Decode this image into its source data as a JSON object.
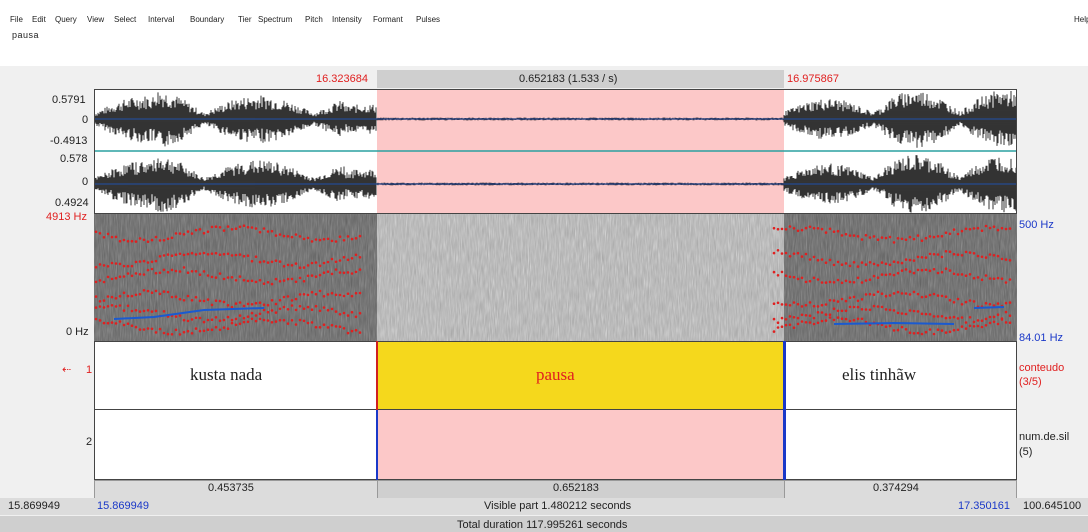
{
  "menu": [
    "File",
    "Edit",
    "Query",
    "View",
    "Select",
    "Interval",
    "Boundary",
    "Tier",
    "Spectrum",
    "Pitch",
    "Intensity",
    "Formant",
    "Pulses",
    "Help"
  ],
  "text_box": {
    "value": "pausa"
  },
  "selection": {
    "start": "16.323684",
    "end": "16.975867",
    "duration": "0.652183 (1.533 / s)"
  },
  "waveform": {
    "ch1": {
      "max": "0.5791",
      "zero": "0",
      "min": "-0.4913"
    },
    "ch2": {
      "max": "0.578",
      "zero": "0",
      "min": "0.4924"
    }
  },
  "spectrogram": {
    "top_freq": "4913 Hz",
    "bottom_freq": "0 Hz",
    "pitch_top": "500 Hz",
    "pitch_bottom": "84.01 Hz"
  },
  "tiers": [
    {
      "number": "1",
      "name": "conteudo",
      "count": "(3/5)",
      "intervals": [
        {
          "text": "kusta nada"
        },
        {
          "text": "pausa"
        },
        {
          "text": "elis tinhãw"
        }
      ]
    },
    {
      "number": "2",
      "name": "num.de.sil",
      "count": "(5)"
    }
  ],
  "durations": [
    "0.453735",
    "0.652183",
    "0.374294"
  ],
  "window": {
    "start_left": "15.869949",
    "start_visible": "15.869949",
    "visible_part": "Visible part 1.480212 seconds",
    "end_visible": "17.350161",
    "end_right": "100.645100"
  },
  "total_duration": "Total duration 117.995261 seconds",
  "colors": {
    "selection": "#fcc8c8",
    "selected_interval": "#f5d81c",
    "pitch": "#e02020",
    "boundary": "#1a38c8"
  }
}
